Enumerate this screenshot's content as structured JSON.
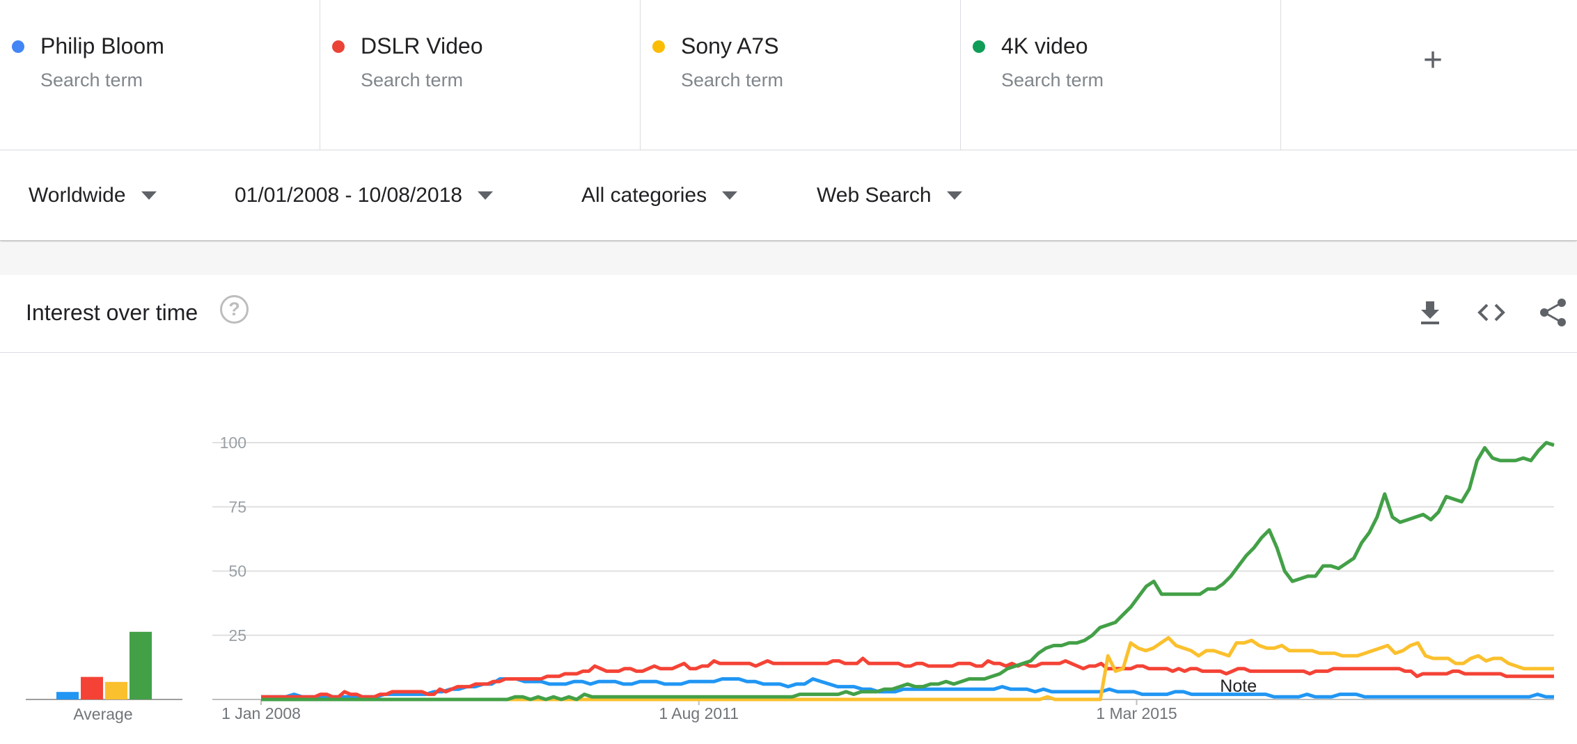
{
  "search_terms": [
    {
      "name": "Philip Bloom",
      "subtitle": "Search term",
      "color": "#4285F4"
    },
    {
      "name": "DSLR Video",
      "subtitle": "Search term",
      "color": "#EA4335"
    },
    {
      "name": "Sony A7S",
      "subtitle": "Search term",
      "color": "#FBBC04"
    },
    {
      "name": "4K video",
      "subtitle": "Search term",
      "color": "#0F9D58"
    }
  ],
  "add_term": {
    "icon": "plus-icon",
    "label": "+"
  },
  "filters": {
    "region": "Worldwide",
    "date_range": "01/01/2008 - 10/08/2018",
    "category": "All categories",
    "search_type": "Web Search"
  },
  "section": {
    "title": "Interest over time",
    "help_icon": "?",
    "tools": [
      "download-icon",
      "embed-icon",
      "share-icon"
    ]
  },
  "chart_data": {
    "type": "line",
    "x_start": "2008-01",
    "x_end": "2018-08",
    "x_ticks": [
      "1 Jan 2008",
      "1 Aug 2011",
      "1 Mar 2015"
    ],
    "y_ticks": [
      100,
      75,
      50,
      25
    ],
    "ylim": [
      0,
      100
    ],
    "grid": true,
    "average_label": "Average",
    "averages": [
      3,
      9,
      7,
      27
    ],
    "annotations": [
      {
        "text": "Note",
        "x": "2016-01"
      }
    ],
    "series": [
      {
        "name": "Philip Bloom",
        "color": "#2196F3",
        "values": [
          1,
          1,
          1,
          1,
          2,
          1,
          1,
          1,
          1,
          1,
          1,
          1,
          1,
          1,
          1,
          2,
          2,
          2,
          2,
          2,
          2,
          3,
          3,
          4,
          4,
          5,
          5,
          6,
          6,
          8,
          8,
          8,
          7,
          7,
          7,
          6,
          6,
          6,
          7,
          7,
          6,
          7,
          7,
          7,
          6,
          6,
          7,
          7,
          7,
          6,
          6,
          6,
          7,
          7,
          7,
          7,
          8,
          8,
          8,
          7,
          7,
          6,
          6,
          6,
          5,
          6,
          6,
          8,
          7,
          6,
          5,
          5,
          5,
          4,
          4,
          3,
          3,
          3,
          4,
          4,
          4,
          4,
          4,
          4,
          4,
          4,
          4,
          4,
          4,
          4,
          5,
          4,
          4,
          4,
          3,
          4,
          3,
          3,
          3,
          3,
          3,
          3,
          3,
          4,
          3,
          3,
          3,
          2,
          2,
          2,
          2,
          3,
          3,
          2,
          2,
          2,
          2,
          2,
          2,
          2,
          2,
          2,
          2,
          1,
          1,
          1,
          1,
          2,
          1,
          1,
          1,
          2,
          2,
          2,
          1,
          1,
          1,
          1,
          1,
          1,
          1,
          1,
          1,
          1,
          1,
          1,
          1,
          1,
          1,
          1,
          1,
          1,
          1,
          1,
          1,
          2,
          1,
          1
        ]
      },
      {
        "name": "DSLR Video",
        "color": "#F44336",
        "values": [
          1,
          1,
          1,
          1,
          1,
          1,
          1,
          1,
          1,
          1,
          2,
          2,
          1,
          1,
          3,
          2,
          2,
          1,
          1,
          1,
          2,
          2,
          3,
          3,
          3,
          3,
          3,
          3,
          2,
          2,
          4,
          3,
          4,
          5,
          5,
          5,
          6,
          6,
          6,
          7,
          7,
          8,
          8,
          8,
          8,
          8,
          8,
          8,
          9,
          9,
          9,
          10,
          10,
          10,
          11,
          11,
          13,
          12,
          11,
          11,
          11,
          12,
          12,
          11,
          11,
          12,
          13,
          12,
          12,
          12,
          13,
          14,
          12,
          12,
          13,
          13,
          15,
          14,
          14,
          14,
          14,
          14,
          14,
          13,
          14,
          15,
          14,
          14,
          14,
          14,
          14,
          14,
          14,
          14,
          14,
          14,
          15,
          15,
          14,
          14,
          14,
          16,
          14,
          14,
          14,
          14,
          14,
          14,
          13,
          13,
          14,
          14,
          13,
          13,
          13,
          13,
          13,
          14,
          14,
          14,
          13,
          13,
          15,
          14,
          14,
          13,
          14,
          13,
          14,
          13,
          13,
          14,
          14,
          14,
          14,
          15,
          14,
          13,
          12,
          13,
          13,
          14,
          12,
          12,
          12,
          12,
          12,
          13,
          13,
          12,
          12,
          12,
          12,
          11,
          12,
          11,
          12,
          12,
          11,
          11,
          11,
          11,
          10,
          11,
          12,
          12,
          11,
          11,
          11,
          11,
          11,
          11,
          11,
          11,
          11,
          11,
          10,
          11,
          11,
          11,
          12,
          12,
          12,
          12,
          12,
          12,
          12,
          12,
          12,
          12,
          12,
          12,
          11,
          11,
          9,
          10,
          10,
          10,
          10,
          10,
          11,
          11,
          10,
          10,
          10,
          10,
          10,
          10,
          10,
          9,
          9,
          9,
          9,
          9,
          9,
          9,
          9,
          9
        ]
      },
      {
        "name": "Sony A7S",
        "color": "#FBC02D",
        "values": [
          0,
          0,
          0,
          0,
          0,
          0,
          0,
          0,
          0,
          0,
          0,
          0,
          0,
          0,
          0,
          0,
          0,
          0,
          0,
          0,
          0,
          0,
          0,
          0,
          0,
          0,
          0,
          0,
          0,
          0,
          0,
          0,
          0,
          0,
          0,
          0,
          0,
          0,
          0,
          0,
          0,
          0,
          0,
          0,
          0,
          0,
          0,
          0,
          0,
          0,
          0,
          0,
          0,
          0,
          0,
          0,
          0,
          0,
          0,
          0,
          0,
          0,
          0,
          0,
          0,
          0,
          0,
          0,
          0,
          0,
          0,
          0,
          0,
          0,
          0,
          0,
          0,
          0,
          0,
          0,
          0,
          0,
          0,
          0,
          0,
          0,
          0,
          0,
          0,
          0,
          0,
          0,
          0,
          0,
          0,
          0,
          0,
          0,
          0,
          0,
          0,
          0,
          0,
          0,
          1,
          0,
          0,
          0,
          0,
          0,
          0,
          0,
          17,
          11,
          12,
          22,
          20,
          19,
          20,
          22,
          24,
          21,
          20,
          19,
          17,
          19,
          19,
          18,
          17,
          22,
          22,
          23,
          21,
          20,
          20,
          21,
          19,
          19,
          19,
          19,
          18,
          18,
          18,
          17,
          17,
          17,
          18,
          19,
          20,
          21,
          18,
          19,
          21,
          22,
          17,
          16,
          16,
          16,
          14,
          14,
          16,
          17,
          15,
          16,
          16,
          14,
          13,
          12,
          12,
          12,
          12,
          12
        ]
      },
      {
        "name": "4K video",
        "color": "#43A047",
        "values": [
          0,
          0,
          0,
          0,
          0,
          0,
          0,
          0,
          0,
          0,
          0,
          0,
          0,
          0,
          0,
          0,
          0,
          0,
          0,
          0,
          0,
          0,
          0,
          0,
          0,
          0,
          0,
          0,
          0,
          0,
          0,
          0,
          0,
          1,
          1,
          0,
          1,
          0,
          1,
          0,
          1,
          0,
          2,
          1,
          1,
          1,
          1,
          1,
          1,
          1,
          1,
          1,
          1,
          1,
          1,
          1,
          1,
          1,
          1,
          1,
          1,
          1,
          1,
          1,
          1,
          1,
          1,
          1,
          1,
          1,
          2,
          2,
          2,
          2,
          2,
          2,
          3,
          2,
          3,
          3,
          3,
          4,
          4,
          5,
          6,
          5,
          5,
          6,
          6,
          7,
          6,
          7,
          8,
          8,
          8,
          9,
          10,
          12,
          13,
          14,
          15,
          18,
          20,
          21,
          21,
          22,
          22,
          23,
          25,
          28,
          29,
          30,
          33,
          36,
          40,
          44,
          46,
          41,
          41,
          41,
          41,
          41,
          41,
          43,
          43,
          45,
          48,
          52,
          56,
          59,
          63,
          66,
          59,
          50,
          46,
          47,
          48,
          48,
          52,
          52,
          51,
          53,
          55,
          61,
          65,
          71,
          80,
          71,
          69,
          70,
          71,
          72,
          70,
          73,
          79,
          78,
          77,
          82,
          93,
          98,
          94,
          93,
          93,
          93,
          94,
          93,
          97,
          100,
          99
        ]
      }
    ]
  }
}
